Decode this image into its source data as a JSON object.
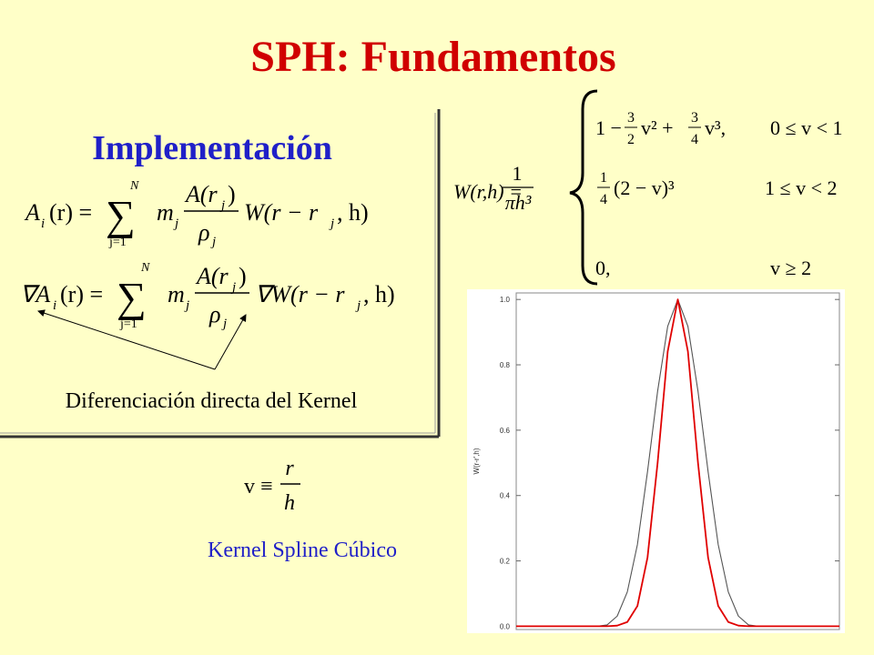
{
  "header": {
    "title": "SPH: Fundamentos"
  },
  "left_panel": {
    "heading": "Implementación",
    "interpolation": {
      "lhs": "A",
      "lhs_sub": "i",
      "lhs_arg": "(r) =",
      "sum": "∑",
      "sum_top": "N",
      "sum_bottom": "j=1",
      "mass": "m",
      "mass_sub": "j",
      "num": "A(r",
      "num_sub": "j",
      "num_close": ")",
      "den": "ρ",
      "den_sub": "j",
      "kernel": "W(r − r",
      "kernel_sub": "j",
      "kernel_close": ", h)"
    },
    "gradient": {
      "lhs": "∇A",
      "lhs_sub": "i",
      "lhs_arg": "(r) =",
      "sum": "∑",
      "sum_top": "N",
      "sum_bottom": "j=1",
      "mass": "m",
      "mass_sub": "j",
      "num": "A(r",
      "num_sub": "j",
      "num_close": ")",
      "den": "ρ",
      "den_sub": "j",
      "kernel": "∇W(r − r",
      "kernel_sub": "j",
      "kernel_close": ", h)"
    },
    "caption": "Diferenciación directa del Kernel"
  },
  "definition": {
    "lhs": "v ≡",
    "num": "r",
    "den": "h"
  },
  "kernel_label": "Kernel Spline Cúbico",
  "kernel_equation": {
    "lhs": "W(r,h) =",
    "pre_num": "1",
    "pre_den": "πh³",
    "rows": [
      {
        "a": "1 −",
        "f1n": "3",
        "f1d": "2",
        "b": "v² +",
        "f2n": "3",
        "f2d": "4",
        "c": "v³,",
        "cond": "0 ≤ v < 1"
      },
      {
        "f1n": "1",
        "f1d": "4",
        "b": "(2 − v)³",
        "cond": "1 ≤ v < 2"
      },
      {
        "a": "0,",
        "cond": "v ≥ 2"
      }
    ]
  },
  "chart_data": {
    "type": "line",
    "y_label": "W(r-r',h)",
    "x": [
      -4,
      -2,
      -1.75,
      -1.5,
      -1.25,
      -1,
      -0.75,
      -0.5,
      -0.25,
      0,
      0.25,
      0.5,
      0.75,
      1,
      1.25,
      1.5,
      1.75,
      2,
      4
    ],
    "series": [
      {
        "color": "#555555",
        "values": [
          0,
          0,
          0.004,
          0.031,
          0.105,
          0.25,
          0.473,
          0.719,
          0.918,
          1,
          0.918,
          0.719,
          0.473,
          0.25,
          0.105,
          0.031,
          0.004,
          0,
          0
        ]
      },
      {
        "color": "#e00000",
        "values": [
          0,
          0,
          0,
          0.002,
          0.013,
          0.062,
          0.21,
          0.5,
          0.841,
          1,
          0.841,
          0.5,
          0.21,
          0.062,
          0.013,
          0.002,
          0,
          0,
          0
        ]
      }
    ],
    "xlim": [
      -4,
      4
    ],
    "ylim": [
      -0.01,
      1.02
    ],
    "yticks": [
      {
        "value": 0,
        "label": "0.0"
      },
      0.2,
      0.4,
      0.6,
      0.8,
      {
        "value": 1,
        "label": "1.0"
      }
    ]
  }
}
